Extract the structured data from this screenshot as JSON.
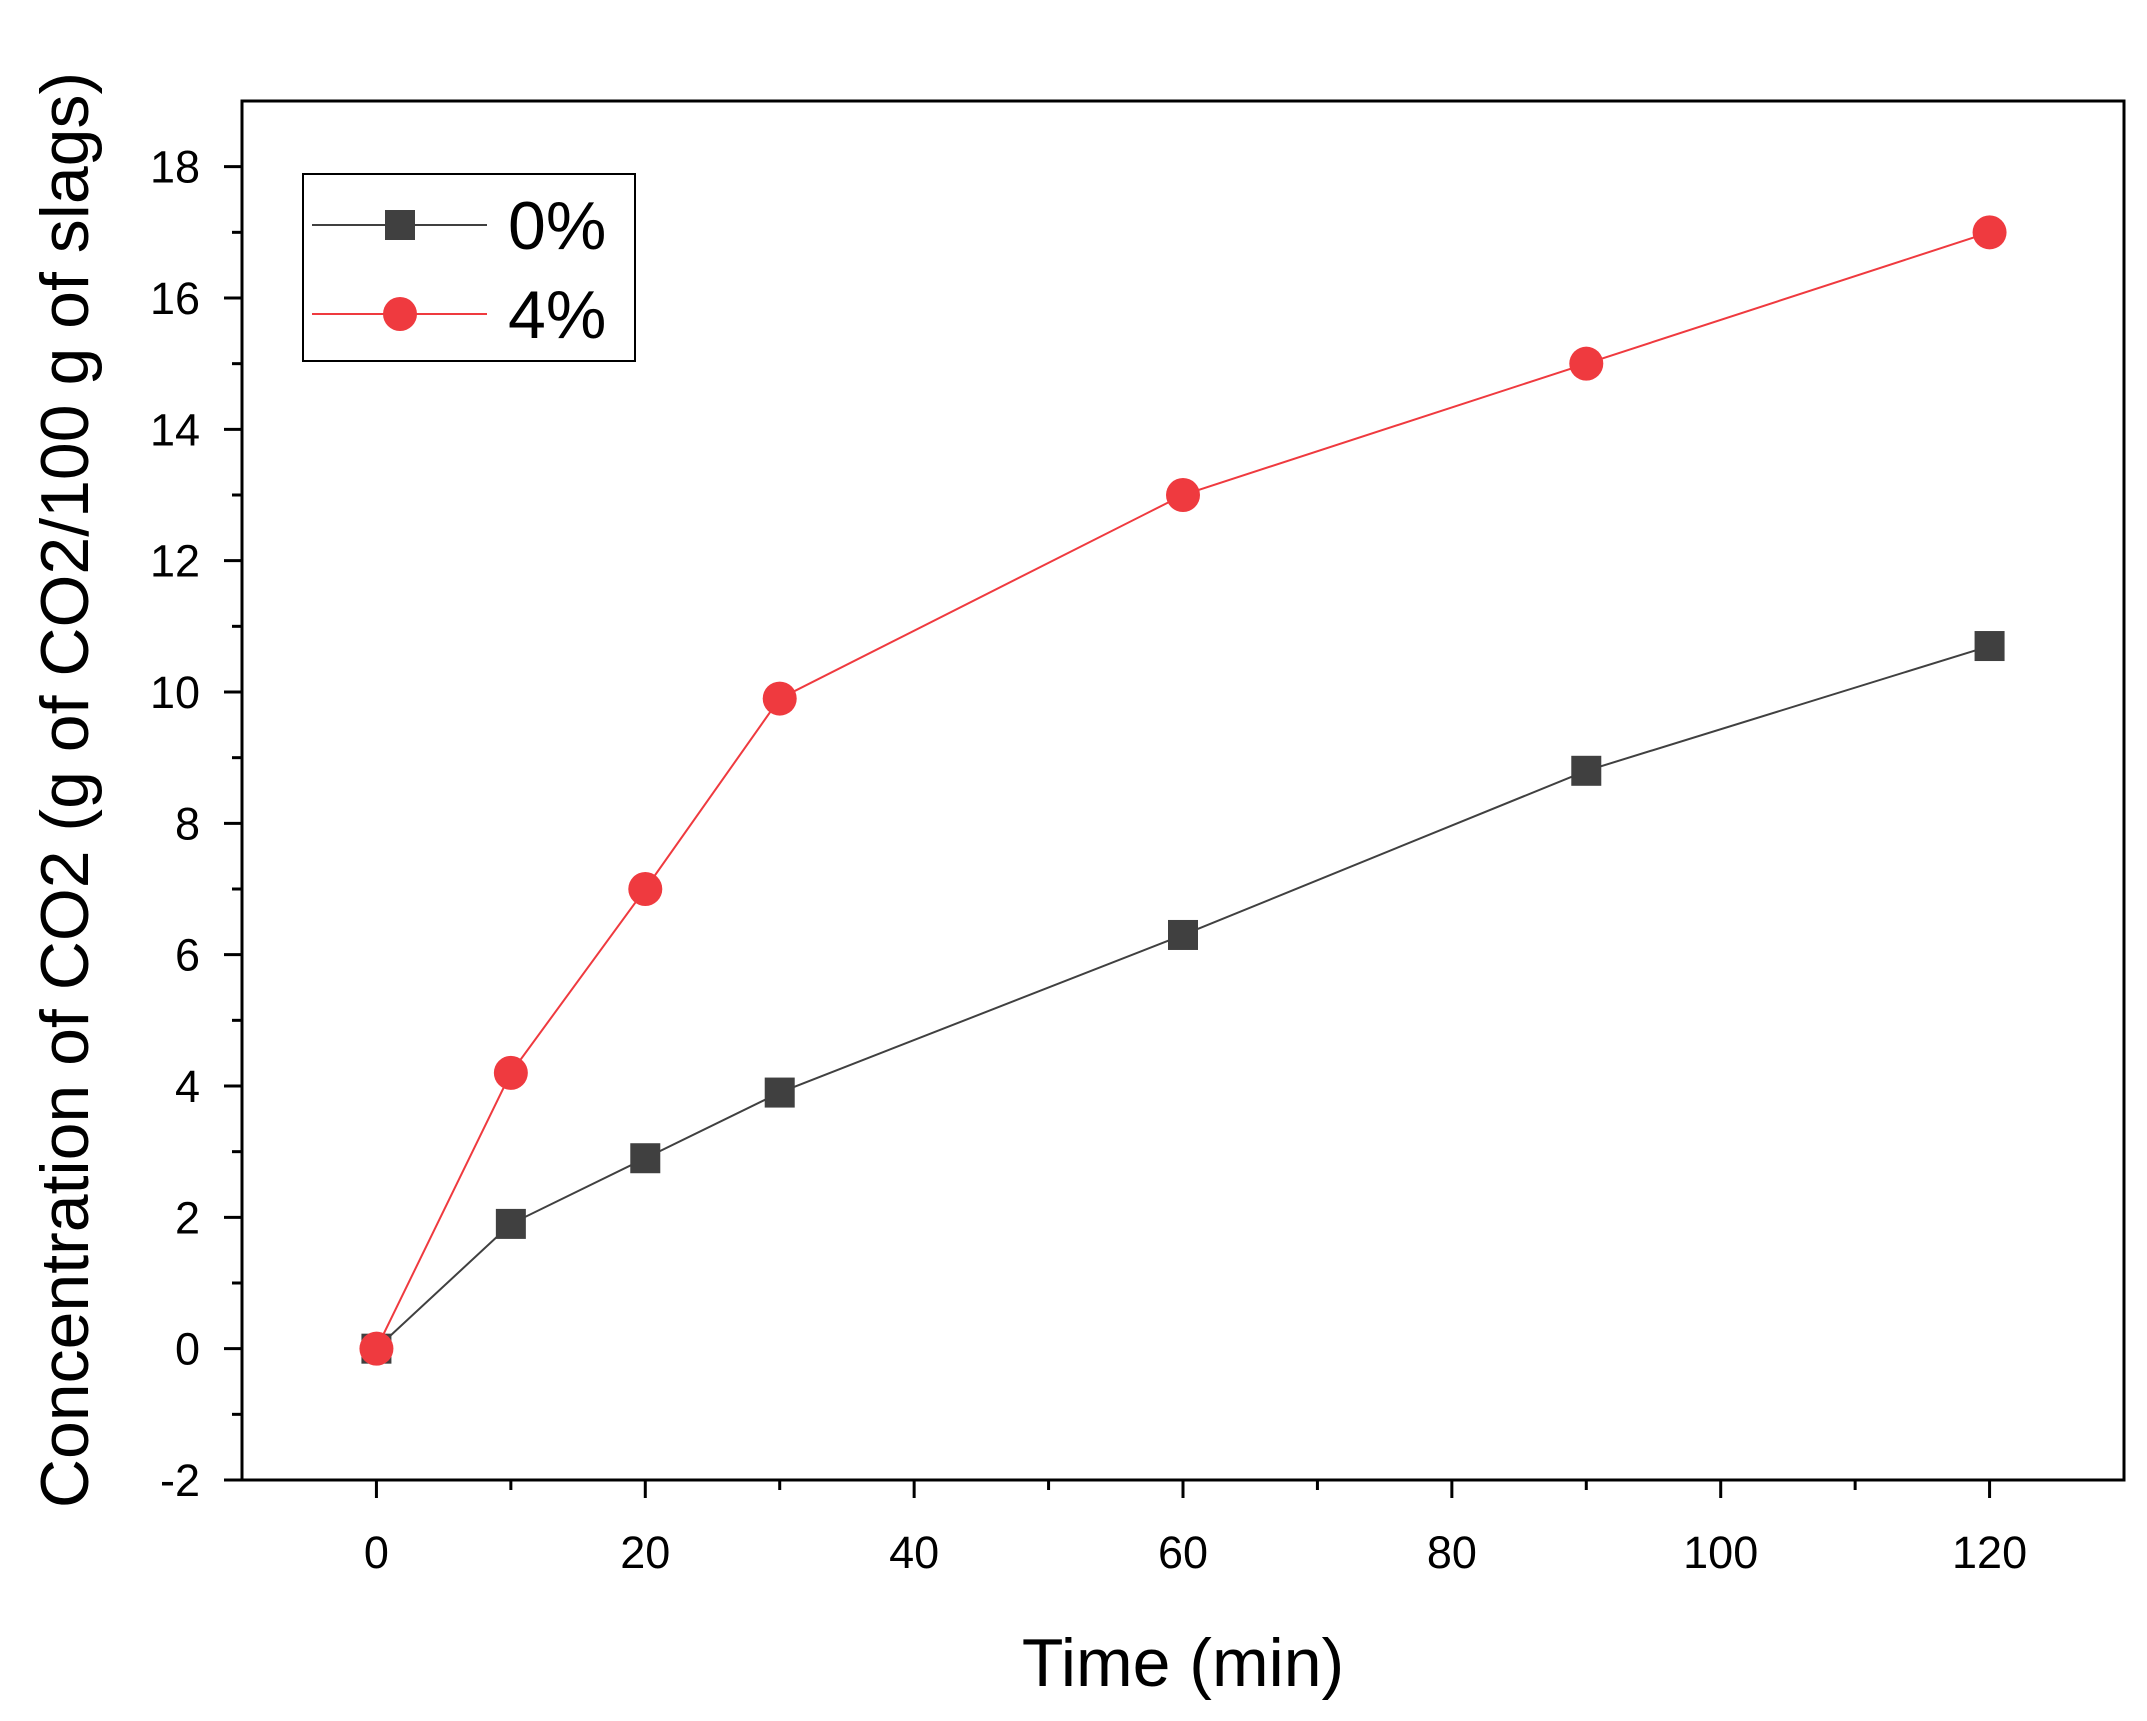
{
  "chart_data": {
    "type": "line",
    "xlabel": "Time (min)",
    "ylabel": "Concentration of CO2  (g of CO2/100 g of slags)",
    "xlim": [
      -10,
      130
    ],
    "ylim": [
      -2,
      19
    ],
    "x_ticks": [
      0,
      20,
      40,
      60,
      80,
      100,
      120
    ],
    "x_tick_labels": [
      "0",
      "20",
      "40",
      "60",
      "80",
      "100",
      "120"
    ],
    "x_minor_ticks": [
      10,
      30,
      50,
      70,
      90,
      110
    ],
    "y_ticks": [
      -2,
      0,
      2,
      4,
      6,
      8,
      10,
      12,
      14,
      16,
      18
    ],
    "y_tick_labels": [
      "-2",
      "0",
      "2",
      "4",
      "6",
      "8",
      "10",
      "12",
      "14",
      "16",
      "18"
    ],
    "y_minor_ticks": [
      -1,
      1,
      3,
      5,
      7,
      9,
      11,
      13,
      15,
      17
    ],
    "grid": false,
    "legend_position": "top-left",
    "x": [
      0,
      10,
      20,
      30,
      60,
      90,
      120
    ],
    "series": [
      {
        "name": "0%",
        "marker": "square",
        "color": "#404040",
        "line_color": "#404040",
        "values": [
          0,
          1.9,
          2.9,
          3.9,
          6.3,
          8.8,
          10.7
        ]
      },
      {
        "name": "4%",
        "marker": "circle",
        "color": "#ef3a3f",
        "line_color": "#ef3a3f",
        "values": [
          0,
          4.2,
          7.0,
          9.9,
          13.0,
          15.0,
          17.0
        ]
      }
    ]
  }
}
